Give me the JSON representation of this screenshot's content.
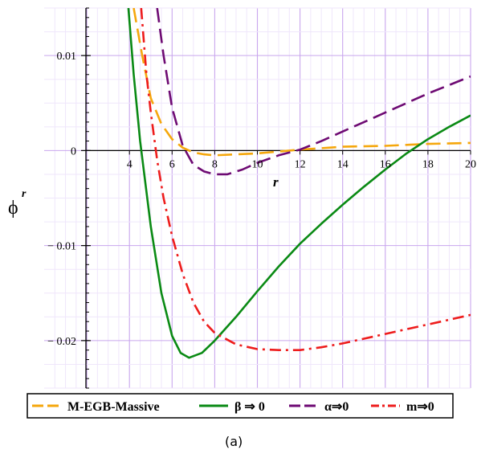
{
  "chart_data": {
    "type": "line",
    "xlabel": "r",
    "ylabel_main": "ϕ",
    "ylabel_sup": "r",
    "xlim": [
      0,
      20
    ],
    "ylim": [
      -0.025,
      0.015
    ],
    "x_ticks": [
      4,
      6,
      8,
      10,
      12,
      14,
      16,
      18,
      20
    ],
    "y_ticks": [
      {
        "value": 0.01,
        "label": "0.01"
      },
      {
        "value": 0,
        "label": "0"
      },
      {
        "value": -0.01,
        "label": "− 0.01"
      },
      {
        "value": -0.02,
        "label": "− 0.02"
      }
    ],
    "grid": true,
    "legend_position": "bottom",
    "series": [
      {
        "name": "M-EGB-Massive",
        "color": "#f5a70c",
        "dash": "longdash",
        "points": [
          [
            4.2,
            0.015
          ],
          [
            4.6,
            0.01
          ],
          [
            5.0,
            0.0055
          ],
          [
            5.5,
            0.0028
          ],
          [
            6.0,
            0.0012
          ],
          [
            6.5,
            0.0003
          ],
          [
            7.0,
            -0.0002
          ],
          [
            7.5,
            -0.0004
          ],
          [
            8.0,
            -0.0005
          ],
          [
            9.0,
            -0.0004
          ],
          [
            10.0,
            -0.0003
          ],
          [
            11.0,
            -0.0001
          ],
          [
            12.0,
            0.0001
          ],
          [
            14.0,
            0.0004
          ],
          [
            16.0,
            0.0005
          ],
          [
            18.0,
            0.0007
          ],
          [
            20.0,
            0.0008
          ]
        ]
      },
      {
        "name": "β ⇒ 0",
        "color": "#0a8a14",
        "dash": "solid",
        "points": [
          [
            3.95,
            0.015
          ],
          [
            4.2,
            0.008
          ],
          [
            4.5,
            0.001
          ],
          [
            5.0,
            -0.008
          ],
          [
            5.5,
            -0.015
          ],
          [
            6.0,
            -0.0195
          ],
          [
            6.4,
            -0.0213
          ],
          [
            6.8,
            -0.0218
          ],
          [
            7.4,
            -0.0213
          ],
          [
            8.0,
            -0.02
          ],
          [
            9.0,
            -0.0175
          ],
          [
            10.0,
            -0.0148
          ],
          [
            11.0,
            -0.0122
          ],
          [
            12.0,
            -0.0098
          ],
          [
            13.0,
            -0.0077
          ],
          [
            14.0,
            -0.0057
          ],
          [
            15.0,
            -0.0038
          ],
          [
            16.0,
            -0.002
          ],
          [
            17.0,
            -0.0003
          ],
          [
            18.0,
            0.0012
          ],
          [
            19.0,
            0.0025
          ],
          [
            20.0,
            0.0037
          ]
        ]
      },
      {
        "name": "α⇒0",
        "color": "#6e0a73",
        "dash": "longdash",
        "points": [
          [
            5.3,
            0.015
          ],
          [
            5.6,
            0.01
          ],
          [
            6.0,
            0.0045
          ],
          [
            6.5,
            0.0005
          ],
          [
            7.0,
            -0.0015
          ],
          [
            7.5,
            -0.0022
          ],
          [
            8.0,
            -0.0025
          ],
          [
            8.6,
            -0.0025
          ],
          [
            9.3,
            -0.002
          ],
          [
            10.0,
            -0.0013
          ],
          [
            11.0,
            -0.0005
          ],
          [
            12.0,
            0.0001
          ],
          [
            13.0,
            0.001
          ],
          [
            14.0,
            0.002
          ],
          [
            15.0,
            0.003
          ],
          [
            16.0,
            0.004
          ],
          [
            17.0,
            0.005
          ],
          [
            18.0,
            0.006
          ],
          [
            19.0,
            0.0069
          ],
          [
            20.0,
            0.0078
          ]
        ]
      },
      {
        "name": "m⇒0",
        "color": "#ee1c1c",
        "dash": "dashdot",
        "points": [
          [
            4.55,
            0.015
          ],
          [
            4.8,
            0.008
          ],
          [
            5.0,
            0.004
          ],
          [
            5.3,
            -0.001
          ],
          [
            5.6,
            -0.005
          ],
          [
            6.0,
            -0.009
          ],
          [
            6.5,
            -0.013
          ],
          [
            7.0,
            -0.016
          ],
          [
            7.5,
            -0.018
          ],
          [
            8.0,
            -0.0192
          ],
          [
            9.0,
            -0.0204
          ],
          [
            10.0,
            -0.0209
          ],
          [
            11.0,
            -0.021
          ],
          [
            12.0,
            -0.021
          ],
          [
            13.0,
            -0.0207
          ],
          [
            14.0,
            -0.0203
          ],
          [
            15.0,
            -0.0198
          ],
          [
            16.0,
            -0.0193
          ],
          [
            17.0,
            -0.0188
          ],
          [
            18.0,
            -0.0183
          ],
          [
            19.0,
            -0.0178
          ],
          [
            20.0,
            -0.0173
          ]
        ]
      }
    ]
  },
  "legend": {
    "items": [
      {
        "label": "M-EGB-Massive",
        "color": "#f5a70c",
        "dash": "longdash"
      },
      {
        "label": "β ⇒ 0",
        "color": "#0a8a14",
        "dash": "solid"
      },
      {
        "label": "α⇒0",
        "color": "#6e0a73",
        "dash": "longdash"
      },
      {
        "label": "m⇒0",
        "color": "#ee1c1c",
        "dash": "dashdot"
      }
    ]
  },
  "caption": "(a)"
}
